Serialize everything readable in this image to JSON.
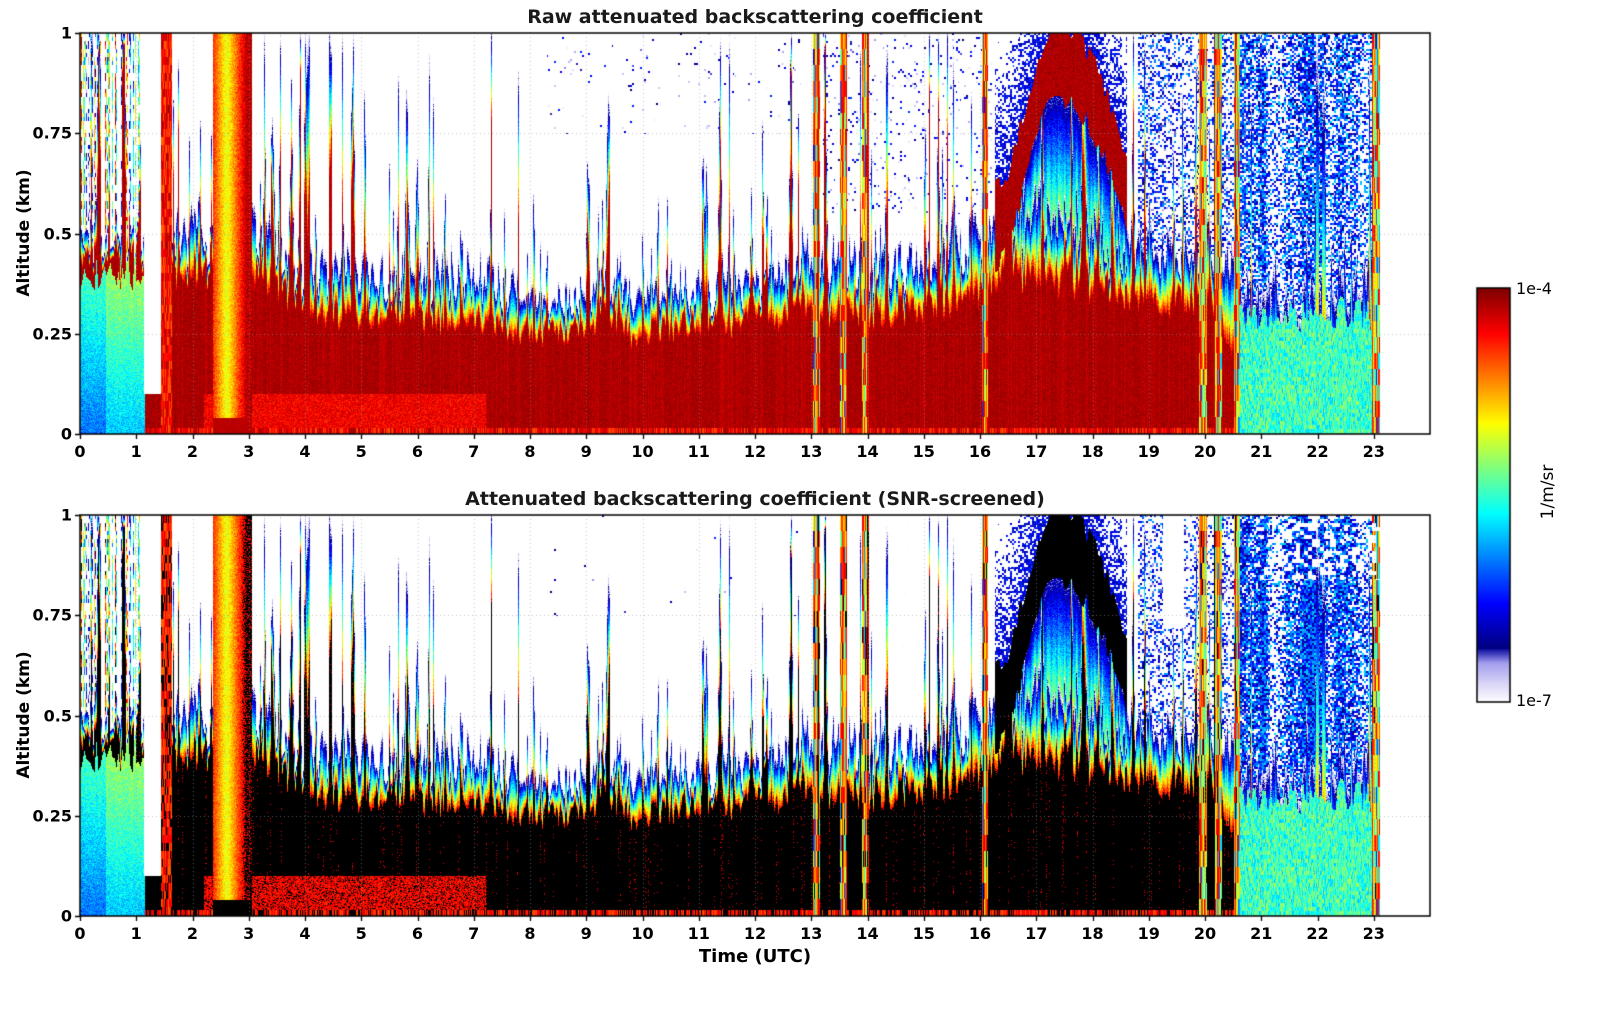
{
  "chart_data": {
    "type": "heatmap",
    "panels": [
      {
        "title": "Raw attenuated backscattering coefficient",
        "screened": false
      },
      {
        "title": "Attenuated backscattering coefficient (SNR-screened)",
        "screened": true
      }
    ],
    "x": {
      "label": "Time (UTC)",
      "min": 0,
      "max": 24,
      "data_end": 23.1,
      "ticks": [
        0,
        1,
        2,
        3,
        4,
        5,
        6,
        7,
        8,
        9,
        10,
        11,
        12,
        13,
        14,
        15,
        16,
        17,
        18,
        19,
        20,
        21,
        22,
        23
      ]
    },
    "y": {
      "label": "Altitude (km)",
      "min": 0,
      "max": 1,
      "ticks": [
        0,
        0.25,
        0.5,
        0.75,
        1
      ],
      "tick_labels": [
        "0",
        "0.25",
        "0.5",
        "0.75",
        "1"
      ]
    },
    "colorbar": {
      "unit": "1/m/sr",
      "scale": "log10",
      "max_label": "1e-4",
      "min_label": "1e-7",
      "vmin_log10": -7,
      "vmax_log10": -4,
      "colormap": "jet with white/lavender under-range; screened panel saturates to black"
    },
    "boundary_layer_top_km_by_hour": [
      0.52,
      0.45,
      0.5,
      0.55,
      0.4,
      0.42,
      0.38,
      0.42,
      0.33,
      0.35,
      0.33,
      0.36,
      0.36,
      0.45,
      0.42,
      0.42,
      0.5,
      0.55,
      0.5,
      0.45,
      0.48,
      0.34,
      0.34,
      0.4
    ],
    "strong_layer_top_km_by_hour": [
      0.46,
      0.42,
      0.4,
      0.42,
      0.3,
      0.3,
      0.28,
      0.28,
      0.24,
      0.26,
      0.25,
      0.27,
      0.28,
      0.32,
      0.3,
      0.3,
      0.36,
      0.4,
      0.36,
      0.32,
      0.34,
      0.08,
      0.06,
      0.15
    ],
    "features": {
      "saturation_log10": -4.22,
      "weak_cyan_block": {
        "t": [
          0,
          1.15
        ],
        "z_top": 0.4,
        "log10_range": [
          -6.0,
          -5.2
        ]
      },
      "clear_gap": {
        "t": [
          1.13,
          1.44
        ],
        "z_above": 0.1
      },
      "morning_noise_streaks": {
        "t": [
          0,
          1.12
        ]
      },
      "red_column": {
        "t": [
          1.44,
          1.62
        ]
      },
      "plume": {
        "t": [
          2.35,
          3.05
        ],
        "core_t": 2.6
      },
      "full_height_towers_t": [
        [
          13.02,
          13.14
        ],
        [
          13.5,
          13.62
        ],
        [
          13.9,
          14.02
        ],
        [
          16.02,
          16.14
        ],
        [
          19.88,
          20.02
        ],
        [
          20.16,
          20.3
        ],
        [
          20.5,
          20.62
        ],
        [
          22.96,
          23.1
        ]
      ],
      "cloud_arc": {
        "t": [
          16.25,
          18.6
        ],
        "peak_t": 17.35,
        "base_z": 0.52,
        "peak_z": 0.93,
        "end_z": 0.6,
        "thickness": 0.09
      },
      "right_cyan_band": {
        "t": [
          20.6,
          23.1
        ],
        "z_top": 0.3,
        "log10_value": -5.75
      },
      "speckle_regions": [
        {
          "t": [
            13.2,
            16.2
          ],
          "z": [
            0.55,
            1.0
          ],
          "density": 0.06,
          "density_screened": 0.02,
          "log10_value": -6.55
        },
        {
          "t": [
            18.8,
            20.72
          ],
          "z": [
            0.45,
            1.0
          ],
          "density": 0.38,
          "density_screened": 0.33,
          "log10_value": -6.3
        },
        {
          "t": [
            20.6,
            23.1
          ],
          "z": [
            0.1,
            1.0
          ],
          "density": 0.62,
          "density_screened": 0.8,
          "log10_value": -6.15
        },
        {
          "t": [
            8.3,
            12.8
          ],
          "z": [
            0.75,
            1.0
          ],
          "density": 0.02,
          "density_screened": 0.004,
          "log10_value": -6.6
        }
      ],
      "screened_holes": [
        {
          "t": [
            19.25,
            19.62
          ],
          "z_above": 0.72,
          "density": 1.0
        },
        {
          "t": [
            20.9,
            23.1
          ],
          "z_above": 0.84,
          "density": 0.3
        }
      ]
    }
  }
}
